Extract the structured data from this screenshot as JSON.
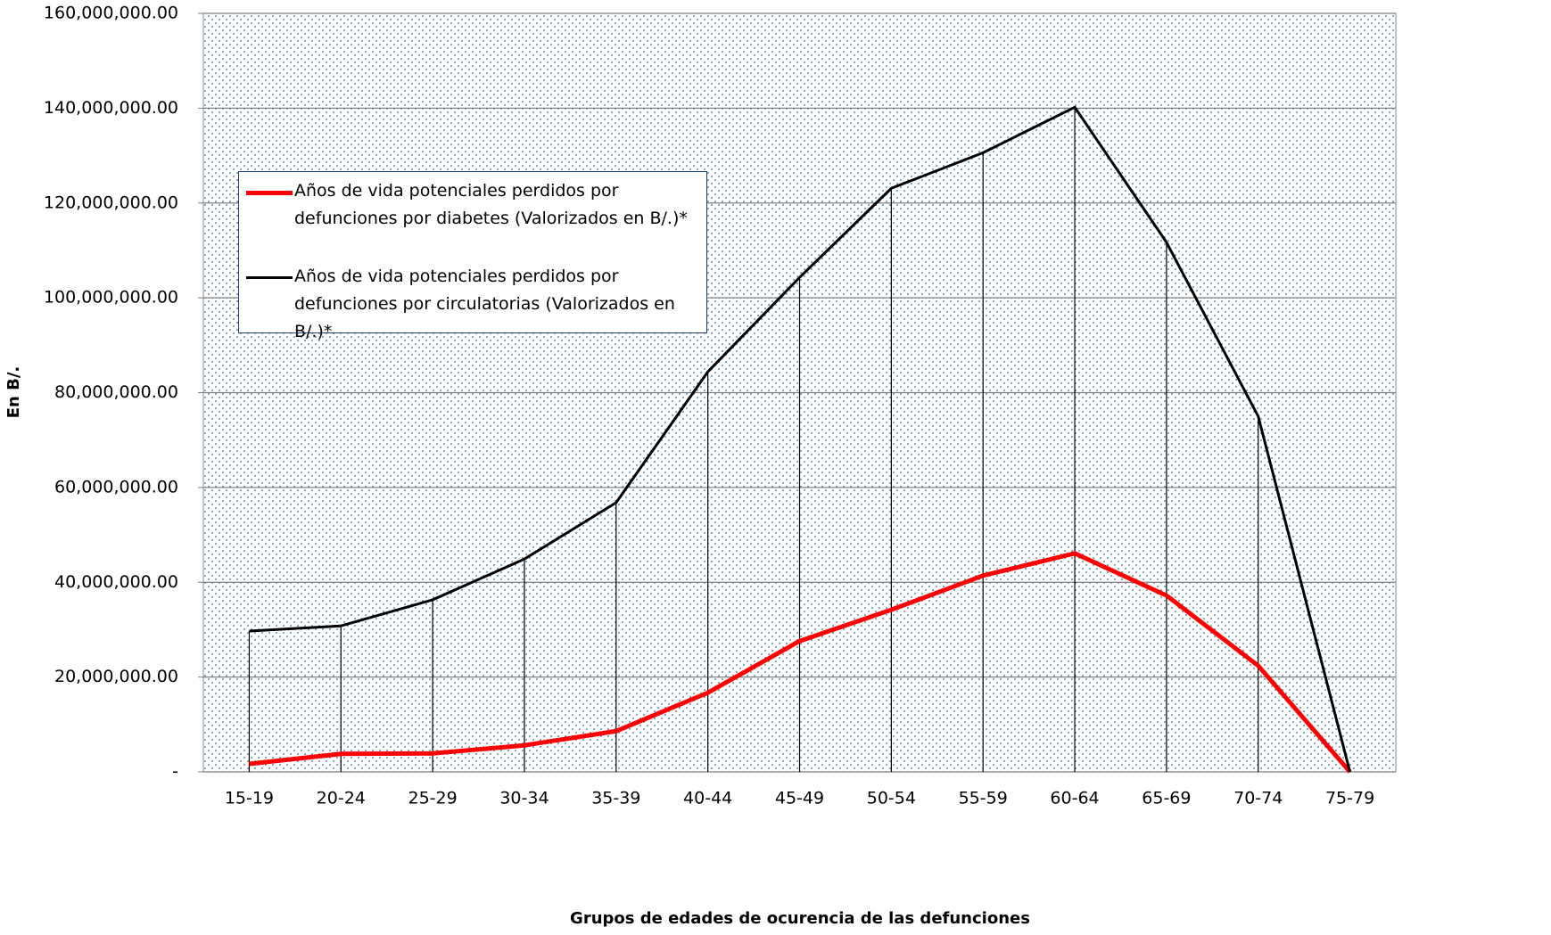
{
  "chart_data": {
    "type": "line",
    "x_label": "Grupos de edades de ocurencia de las defunciones",
    "y_label": "En B/.",
    "categories": [
      "15-19",
      "20-24",
      "25-29",
      "30-34",
      "35-39",
      "40-44",
      "45-49",
      "50-54",
      "55-59",
      "60-64",
      "65-69",
      "70-74",
      "75-79"
    ],
    "series": [
      {
        "name": "Años de vida potenciales perdidos por defunciones por diabetes (Valorizados en B/.)*",
        "color": "#ff0000",
        "values": [
          1700000,
          3800000,
          3900000,
          5600000,
          8600000,
          16700000,
          27600000,
          34200000,
          41400000,
          46100000,
          37200000,
          22400000,
          0
        ]
      },
      {
        "name": "Años de vida potenciales perdidos por defunciones por circulatorias (Valorizados en B/.)*",
        "color": "#000000",
        "values": [
          29700000,
          30800000,
          36300000,
          44900000,
          56800000,
          84400000,
          104300000,
          123100000,
          130600000,
          140200000,
          111700000,
          75000000,
          0
        ]
      }
    ],
    "ylim": [
      0,
      160000000
    ],
    "yticks": [
      {
        "value": 0,
        "label": "-"
      },
      {
        "value": 20000000,
        "label": "20,000,000.00"
      },
      {
        "value": 40000000,
        "label": "40,000,000.00"
      },
      {
        "value": 60000000,
        "label": "60,000,000.00"
      },
      {
        "value": 80000000,
        "label": "80,000,000.00"
      },
      {
        "value": 100000000,
        "label": "100,000,000.00"
      },
      {
        "value": 120000000,
        "label": "120,000,000.00"
      },
      {
        "value": 140000000,
        "label": "140,000,000.00"
      },
      {
        "value": 160000000,
        "label": "160,000,000.00"
      }
    ],
    "grid": true,
    "drop_lines": true,
    "legend": "upper left"
  }
}
